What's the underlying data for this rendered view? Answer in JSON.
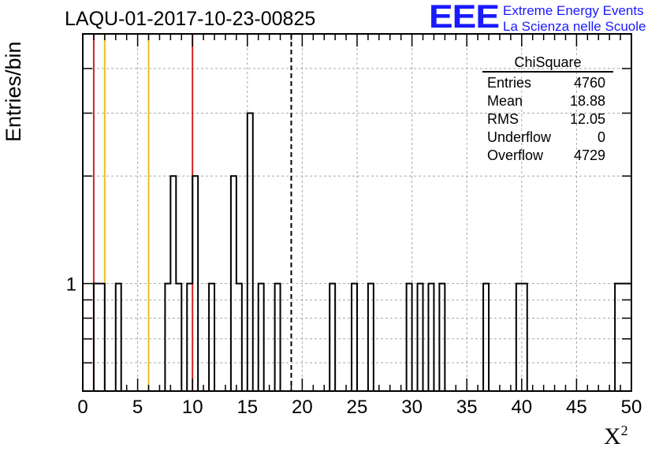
{
  "chart_data": {
    "type": "bar",
    "title": "LAQU-01-2017-10-23-00825",
    "xlabel": "X",
    "xlabel_sup": "2",
    "ylabel": "Entries/bin",
    "xlim": [
      0,
      50
    ],
    "ylim": [
      0.5,
      5
    ],
    "yscale": "log",
    "grid": true,
    "bin_width": 0.5,
    "x_ticks": [
      0,
      5,
      10,
      15,
      20,
      25,
      30,
      35,
      40,
      45,
      50
    ],
    "y_tick_labels": [
      1
    ],
    "bins": [
      {
        "x": 1.0,
        "count": 1
      },
      {
        "x": 1.5,
        "count": 1
      },
      {
        "x": 3.0,
        "count": 1
      },
      {
        "x": 7.5,
        "count": 1
      },
      {
        "x": 8.0,
        "count": 2
      },
      {
        "x": 8.5,
        "count": 1
      },
      {
        "x": 9.5,
        "count": 1
      },
      {
        "x": 10.0,
        "count": 2
      },
      {
        "x": 11.5,
        "count": 1
      },
      {
        "x": 13.5,
        "count": 2
      },
      {
        "x": 14.0,
        "count": 1
      },
      {
        "x": 15.0,
        "count": 3
      },
      {
        "x": 16.0,
        "count": 1
      },
      {
        "x": 17.5,
        "count": 1
      },
      {
        "x": 22.5,
        "count": 1
      },
      {
        "x": 24.5,
        "count": 1
      },
      {
        "x": 26.0,
        "count": 1
      },
      {
        "x": 29.5,
        "count": 1
      },
      {
        "x": 30.5,
        "count": 1
      },
      {
        "x": 31.5,
        "count": 1
      },
      {
        "x": 32.5,
        "count": 1
      },
      {
        "x": 36.5,
        "count": 1
      },
      {
        "x": 39.5,
        "count": 1
      },
      {
        "x": 40.0,
        "count": 1
      },
      {
        "x": 48.5,
        "count": 1
      },
      {
        "x": 49.0,
        "count": 1
      },
      {
        "x": 49.5,
        "count": 1
      }
    ],
    "vertical_lines": [
      {
        "x": 1.0,
        "color": "#d42020",
        "style": "solid"
      },
      {
        "x": 2.0,
        "color": "#f0c020",
        "style": "solid"
      },
      {
        "x": 6.0,
        "color": "#f0c020",
        "style": "solid"
      },
      {
        "x": 10.0,
        "color": "#d42020",
        "style": "solid"
      },
      {
        "x": 19.0,
        "color": "#000000",
        "style": "dashed"
      }
    ]
  },
  "stats": {
    "name": "ChiSquare",
    "rows": [
      {
        "label": "Entries",
        "value": "4760"
      },
      {
        "label": "Mean",
        "value": "18.88"
      },
      {
        "label": "RMS",
        "value": "12.05"
      },
      {
        "label": "Underflow",
        "value": "0"
      },
      {
        "label": "Overflow",
        "value": "4729"
      }
    ]
  },
  "logo": {
    "mark": "EEE",
    "line1": "Extreme Energy Events",
    "line2": "La Scienza nelle Scuole",
    "color": "#1a1aff"
  }
}
